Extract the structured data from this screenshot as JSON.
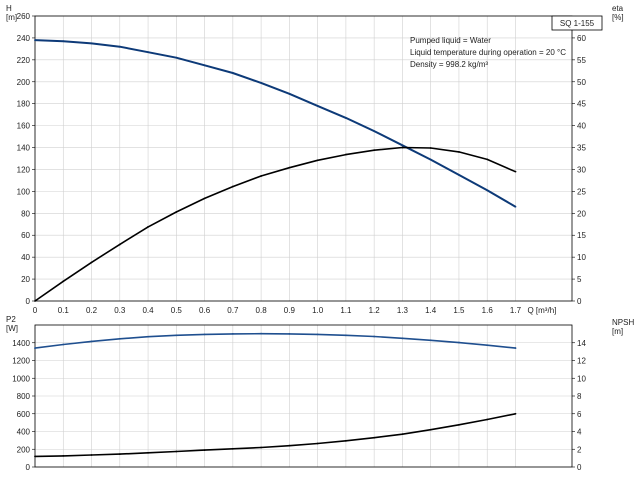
{
  "chart_data": [
    {
      "id": "upper",
      "type": "line",
      "x": [
        0,
        0.1,
        0.2,
        0.3,
        0.4,
        0.5,
        0.6,
        0.7,
        0.8,
        0.9,
        1.0,
        1.1,
        1.2,
        1.3,
        1.4,
        1.5,
        1.6,
        1.7
      ],
      "xticks": [
        "0",
        "0.1",
        "0.2",
        "0.3",
        "0.4",
        "0.5",
        "0.6",
        "0.7",
        "0.8",
        "0.9",
        "1.0",
        "1.1",
        "1.2",
        "1.3",
        "1.4",
        "1.5",
        "1.6",
        "1.7"
      ],
      "xlabel": "Q [m³/h]",
      "xlim": [
        0,
        1.9
      ],
      "ylabel_left": [
        "H",
        "[m]"
      ],
      "ylabel_right": [
        "eta",
        "[%]"
      ],
      "ylim_left": [
        0,
        260
      ],
      "yticks_left": [
        0,
        20,
        40,
        60,
        80,
        100,
        120,
        140,
        160,
        180,
        200,
        220,
        240,
        260
      ],
      "ylim_right": [
        0,
        65
      ],
      "yticks_right": [
        0,
        5,
        10,
        15,
        20,
        25,
        30,
        35,
        40,
        45,
        50,
        55,
        60
      ],
      "grid": true,
      "badge": "SQ 1-155",
      "annotations": [
        "Pumped liquid = Water",
        "Liquid temperature during operation = 20 °C",
        "Density = 998.2 kg/m³"
      ],
      "series": [
        {
          "axis": "left",
          "color": "#0d3a78",
          "values": [
            238,
            237,
            235,
            232,
            227,
            222,
            215,
            208,
            199,
            189,
            178,
            167,
            155,
            142,
            129,
            115,
            101,
            86
          ]
        },
        {
          "axis": "right",
          "color": "#000000",
          "values": [
            0,
            4.5,
            8.8,
            12.9,
            16.9,
            20.3,
            23.4,
            26.1,
            28.5,
            30.4,
            32.1,
            33.4,
            34.4,
            35.0,
            34.9,
            34.0,
            32.3,
            29.5
          ]
        }
      ]
    },
    {
      "id": "lower",
      "type": "line",
      "x": [
        0,
        0.1,
        0.2,
        0.3,
        0.4,
        0.5,
        0.6,
        0.7,
        0.8,
        0.9,
        1.0,
        1.1,
        1.2,
        1.3,
        1.4,
        1.5,
        1.6,
        1.7
      ],
      "xlim": [
        0,
        1.9
      ],
      "ylabel_left": [
        "P2",
        "[W]"
      ],
      "ylabel_right": [
        "NPSH",
        "[m]"
      ],
      "ylim_left": [
        0,
        1600
      ],
      "yticks_left": [
        0,
        200,
        400,
        600,
        800,
        1000,
        1200,
        1400
      ],
      "ylim_right": [
        0,
        16
      ],
      "yticks_right": [
        0,
        2,
        4,
        6,
        8,
        10,
        12,
        14
      ],
      "grid": true,
      "series": [
        {
          "axis": "left",
          "color": "#1f4f8f",
          "values": [
            1340,
            1380,
            1415,
            1445,
            1468,
            1484,
            1494,
            1500,
            1502,
            1500,
            1494,
            1484,
            1470,
            1450,
            1428,
            1402,
            1372,
            1340
          ]
        },
        {
          "axis": "right",
          "color": "#000000",
          "values": [
            1.2,
            1.25,
            1.35,
            1.45,
            1.6,
            1.75,
            1.9,
            2.05,
            2.2,
            2.4,
            2.65,
            2.95,
            3.3,
            3.7,
            4.2,
            4.75,
            5.35,
            6.0
          ]
        }
      ]
    }
  ]
}
